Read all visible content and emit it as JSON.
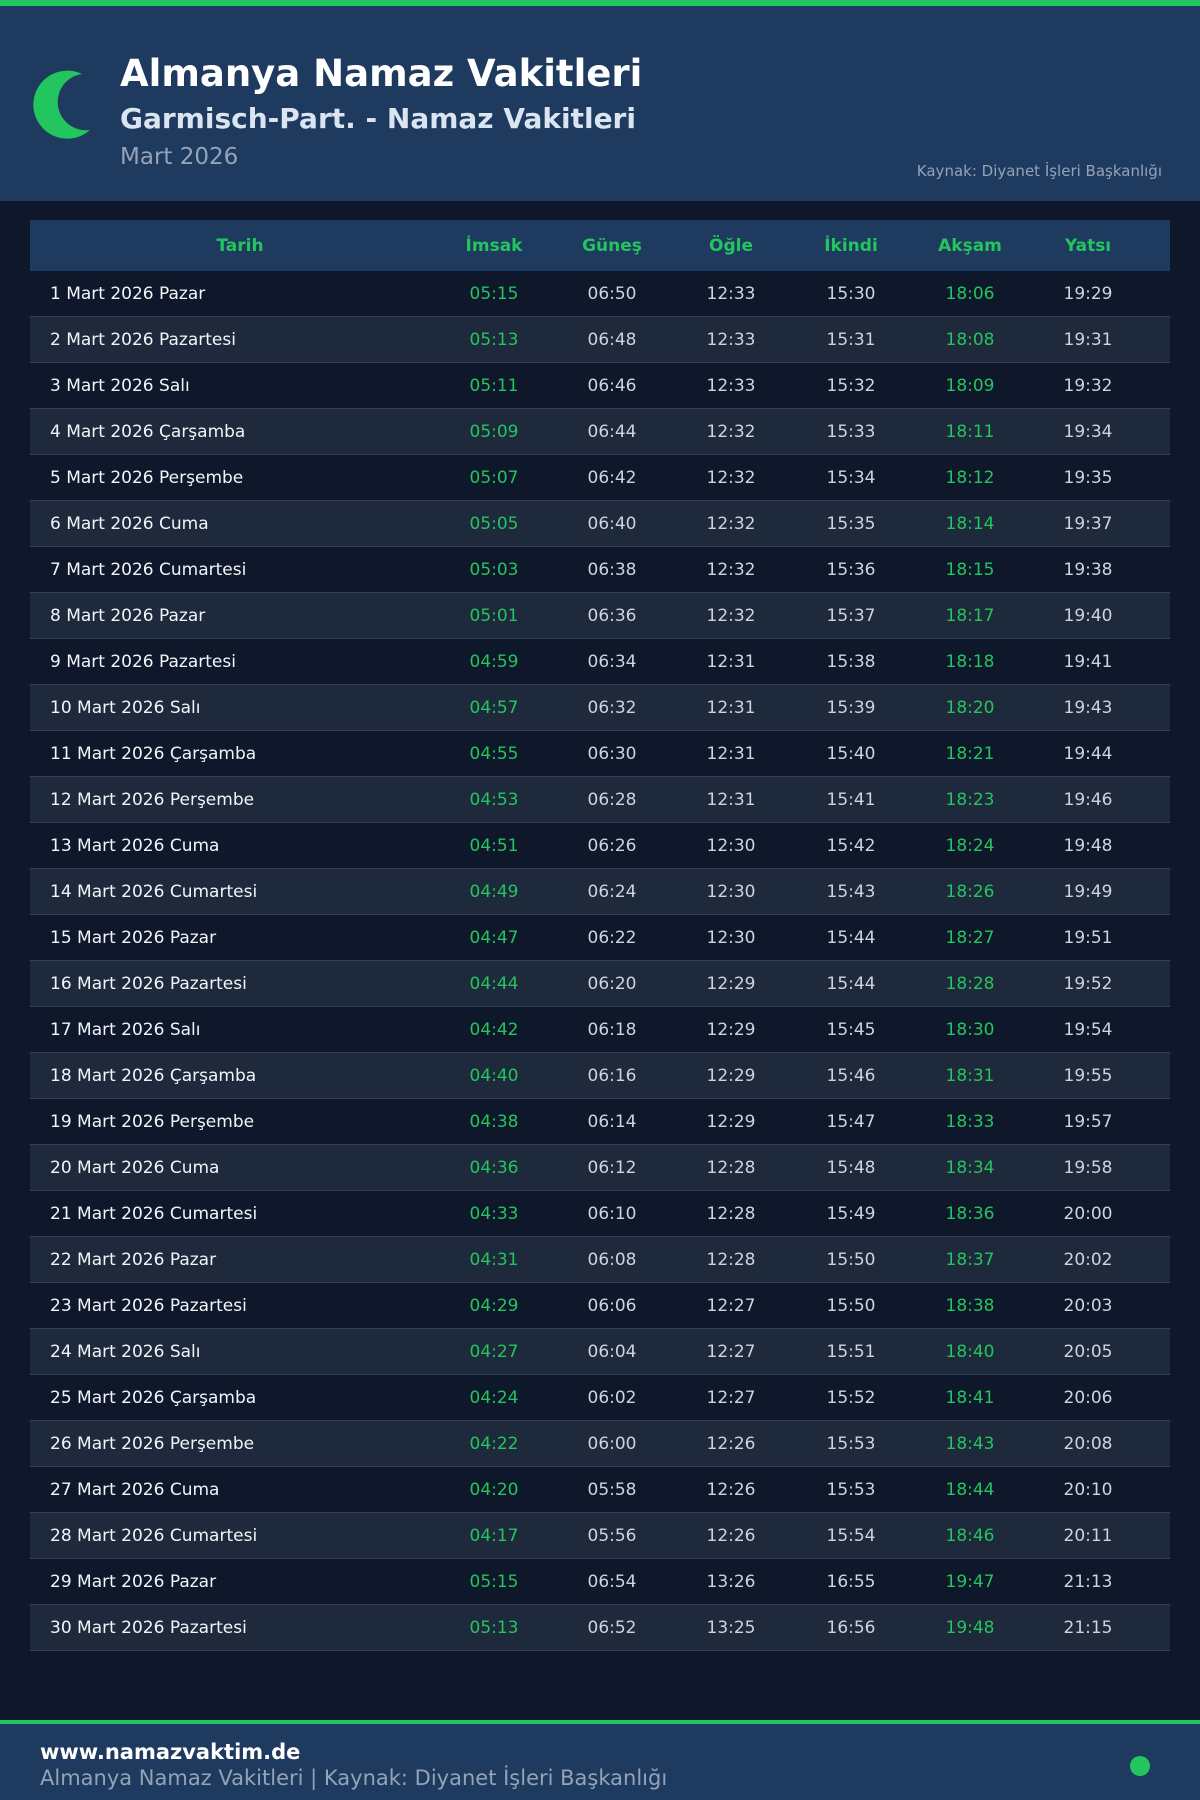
{
  "header": {
    "title": "Almanya Namaz Vakitleri",
    "subtitle": "Garmisch-Part. - Namaz Vakitleri",
    "month": "Mart 2026",
    "source": "Kaynak: Diyanet İşleri Başkanlığı",
    "icon": "crescent-moon-icon"
  },
  "colors": {
    "accent": "#22c55e",
    "header_bg": "#1e3a5f",
    "page_bg": "#0f172a"
  },
  "table": {
    "columns": [
      "Tarih",
      "İmsak",
      "Güneş",
      "Öğle",
      "İkindi",
      "Akşam",
      "Yatsı"
    ],
    "rows": [
      [
        "1 Mart 2026 Pazar",
        "05:15",
        "06:50",
        "12:33",
        "15:30",
        "18:06",
        "19:29"
      ],
      [
        "2 Mart 2026 Pazartesi",
        "05:13",
        "06:48",
        "12:33",
        "15:31",
        "18:08",
        "19:31"
      ],
      [
        "3 Mart 2026 Salı",
        "05:11",
        "06:46",
        "12:33",
        "15:32",
        "18:09",
        "19:32"
      ],
      [
        "4 Mart 2026 Çarşamba",
        "05:09",
        "06:44",
        "12:32",
        "15:33",
        "18:11",
        "19:34"
      ],
      [
        "5 Mart 2026 Perşembe",
        "05:07",
        "06:42",
        "12:32",
        "15:34",
        "18:12",
        "19:35"
      ],
      [
        "6 Mart 2026 Cuma",
        "05:05",
        "06:40",
        "12:32",
        "15:35",
        "18:14",
        "19:37"
      ],
      [
        "7 Mart 2026 Cumartesi",
        "05:03",
        "06:38",
        "12:32",
        "15:36",
        "18:15",
        "19:38"
      ],
      [
        "8 Mart 2026 Pazar",
        "05:01",
        "06:36",
        "12:32",
        "15:37",
        "18:17",
        "19:40"
      ],
      [
        "9 Mart 2026 Pazartesi",
        "04:59",
        "06:34",
        "12:31",
        "15:38",
        "18:18",
        "19:41"
      ],
      [
        "10 Mart 2026 Salı",
        "04:57",
        "06:32",
        "12:31",
        "15:39",
        "18:20",
        "19:43"
      ],
      [
        "11 Mart 2026 Çarşamba",
        "04:55",
        "06:30",
        "12:31",
        "15:40",
        "18:21",
        "19:44"
      ],
      [
        "12 Mart 2026 Perşembe",
        "04:53",
        "06:28",
        "12:31",
        "15:41",
        "18:23",
        "19:46"
      ],
      [
        "13 Mart 2026 Cuma",
        "04:51",
        "06:26",
        "12:30",
        "15:42",
        "18:24",
        "19:48"
      ],
      [
        "14 Mart 2026 Cumartesi",
        "04:49",
        "06:24",
        "12:30",
        "15:43",
        "18:26",
        "19:49"
      ],
      [
        "15 Mart 2026 Pazar",
        "04:47",
        "06:22",
        "12:30",
        "15:44",
        "18:27",
        "19:51"
      ],
      [
        "16 Mart 2026 Pazartesi",
        "04:44",
        "06:20",
        "12:29",
        "15:44",
        "18:28",
        "19:52"
      ],
      [
        "17 Mart 2026 Salı",
        "04:42",
        "06:18",
        "12:29",
        "15:45",
        "18:30",
        "19:54"
      ],
      [
        "18 Mart 2026 Çarşamba",
        "04:40",
        "06:16",
        "12:29",
        "15:46",
        "18:31",
        "19:55"
      ],
      [
        "19 Mart 2026 Perşembe",
        "04:38",
        "06:14",
        "12:29",
        "15:47",
        "18:33",
        "19:57"
      ],
      [
        "20 Mart 2026 Cuma",
        "04:36",
        "06:12",
        "12:28",
        "15:48",
        "18:34",
        "19:58"
      ],
      [
        "21 Mart 2026 Cumartesi",
        "04:33",
        "06:10",
        "12:28",
        "15:49",
        "18:36",
        "20:00"
      ],
      [
        "22 Mart 2026 Pazar",
        "04:31",
        "06:08",
        "12:28",
        "15:50",
        "18:37",
        "20:02"
      ],
      [
        "23 Mart 2026 Pazartesi",
        "04:29",
        "06:06",
        "12:27",
        "15:50",
        "18:38",
        "20:03"
      ],
      [
        "24 Mart 2026 Salı",
        "04:27",
        "06:04",
        "12:27",
        "15:51",
        "18:40",
        "20:05"
      ],
      [
        "25 Mart 2026 Çarşamba",
        "04:24",
        "06:02",
        "12:27",
        "15:52",
        "18:41",
        "20:06"
      ],
      [
        "26 Mart 2026 Perşembe",
        "04:22",
        "06:00",
        "12:26",
        "15:53",
        "18:43",
        "20:08"
      ],
      [
        "27 Mart 2026 Cuma",
        "04:20",
        "05:58",
        "12:26",
        "15:53",
        "18:44",
        "20:10"
      ],
      [
        "28 Mart 2026 Cumartesi",
        "04:17",
        "05:56",
        "12:26",
        "15:54",
        "18:46",
        "20:11"
      ],
      [
        "29 Mart 2026 Pazar",
        "05:15",
        "06:54",
        "13:26",
        "16:55",
        "19:47",
        "21:13"
      ],
      [
        "30 Mart 2026 Pazartesi",
        "05:13",
        "06:52",
        "13:25",
        "16:56",
        "19:48",
        "21:15"
      ]
    ]
  },
  "footer": {
    "site": "www.namazvaktim.de",
    "note": "Almanya Namaz Vakitleri | Kaynak: Diyanet İşleri Başkanlığı"
  }
}
